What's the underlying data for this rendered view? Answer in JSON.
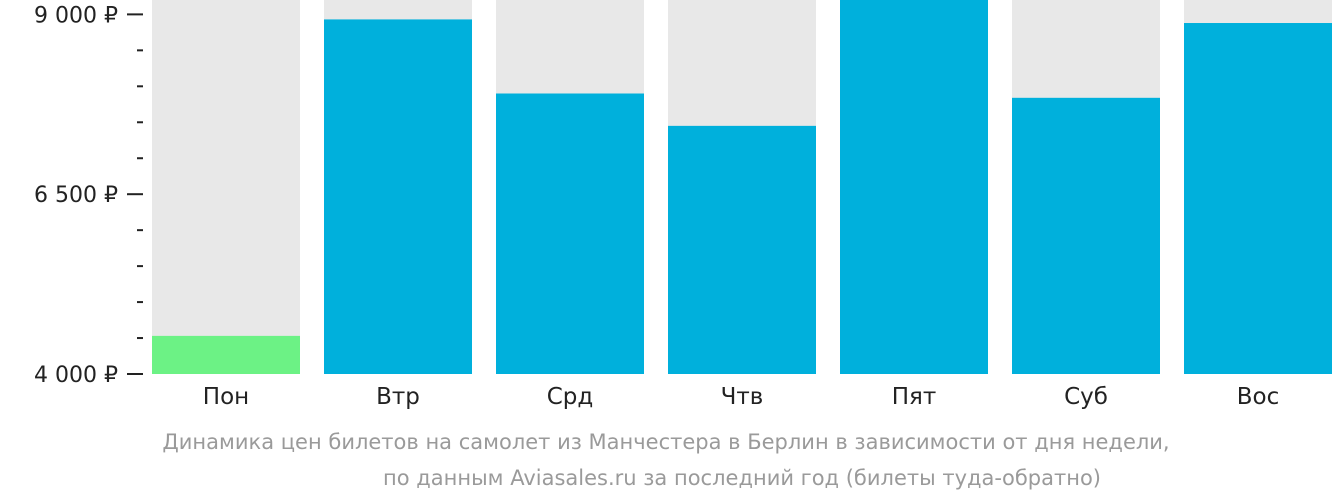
{
  "chart_data": {
    "type": "bar",
    "categories": [
      "Пон",
      "Втр",
      "Срд",
      "Чтв",
      "Пят",
      "Суб",
      "Вос"
    ],
    "values": [
      4530,
      8930,
      7900,
      7450,
      9200,
      7840,
      8880
    ],
    "ylim": [
      4000,
      9200
    ],
    "yticks": [
      {
        "value": 9000,
        "label": "9 000 ₽"
      },
      {
        "value": 6500,
        "label": "6 500 ₽"
      },
      {
        "value": 4000,
        "label": "4 000 ₽"
      }
    ],
    "minor_tick_step": 500,
    "colors": {
      "bar": "#00b0dc",
      "bar_min": "#6cf285",
      "bar_background": "#e8e8e8",
      "axis": "#222222"
    },
    "caption": [
      "Динамика цен билетов на самолет из Манчестера в Берлин в зависимости от дня недели,",
      "по данным Aviasales.ru за последний год (билеты туда-обратно)"
    ]
  }
}
